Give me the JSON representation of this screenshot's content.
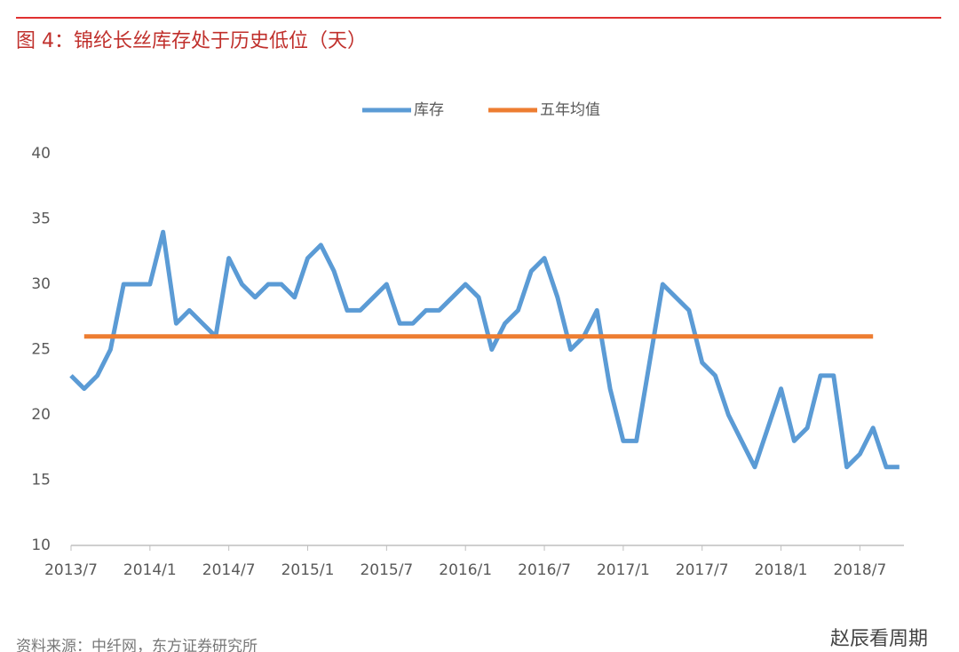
{
  "chart_data": {
    "type": "line",
    "title": "图 4：锦纶长丝库存处于历史低位（天）",
    "x": [
      "2013/7",
      "2013/8",
      "2013/9",
      "2013/10",
      "2013/11",
      "2013/12",
      "2014/1",
      "2014/2",
      "2014/3",
      "2014/4",
      "2014/5",
      "2014/6",
      "2014/7",
      "2014/8",
      "2014/9",
      "2014/10",
      "2014/11",
      "2014/12",
      "2015/1",
      "2015/2",
      "2015/3",
      "2015/4",
      "2015/5",
      "2015/6",
      "2015/7",
      "2015/8",
      "2015/9",
      "2015/10",
      "2015/11",
      "2015/12",
      "2016/1",
      "2016/2",
      "2016/3",
      "2016/4",
      "2016/5",
      "2016/6",
      "2016/7",
      "2016/8",
      "2016/9",
      "2016/10",
      "2016/11",
      "2016/12",
      "2017/1",
      "2017/2",
      "2017/3",
      "2017/4",
      "2017/5",
      "2017/6",
      "2017/7",
      "2017/8",
      "2017/9",
      "2017/10",
      "2017/11",
      "2017/12",
      "2018/1",
      "2018/2",
      "2018/3",
      "2018/4",
      "2018/5",
      "2018/6",
      "2018/7",
      "2018/8",
      "2018/9",
      "2018/10"
    ],
    "xticks": [
      "2013/7",
      "2014/1",
      "2014/7",
      "2015/1",
      "2015/7",
      "2016/1",
      "2016/7",
      "2017/1",
      "2017/7",
      "2018/1",
      "2018/7"
    ],
    "series": [
      {
        "name": "库存",
        "color": "#5b9bd5",
        "values": [
          23,
          22,
          23,
          25,
          30,
          30,
          30,
          34,
          27,
          28,
          27,
          26,
          32,
          30,
          29,
          30,
          30,
          29,
          32,
          33,
          31,
          28,
          28,
          29,
          30,
          27,
          27,
          28,
          28,
          29,
          30,
          29,
          25,
          27,
          28,
          31,
          32,
          29,
          25,
          26,
          28,
          22,
          18,
          18,
          24,
          30,
          29,
          28,
          24,
          23,
          20,
          18,
          16,
          19,
          22,
          18,
          19,
          23,
          23,
          16,
          17,
          19,
          16,
          16
        ]
      },
      {
        "name": "五年均值",
        "color": "#ed7d31",
        "values": [
          null,
          26,
          26,
          26,
          26,
          26,
          26,
          26,
          26,
          26,
          26,
          26,
          26,
          26,
          26,
          26,
          26,
          26,
          26,
          26,
          26,
          26,
          26,
          26,
          26,
          26,
          26,
          26,
          26,
          26,
          26,
          26,
          26,
          26,
          26,
          26,
          26,
          26,
          26,
          26,
          26,
          26,
          26,
          26,
          26,
          26,
          26,
          26,
          26,
          26,
          26,
          26,
          26,
          26,
          26,
          26,
          26,
          26,
          26,
          26,
          26,
          26,
          null,
          null
        ]
      }
    ],
    "ylim": [
      10,
      40
    ],
    "yticks": [
      10,
      15,
      20,
      25,
      30,
      35,
      40
    ],
    "grid": false,
    "legend": "top",
    "source": "资料来源：中纤网，东方证券研究所",
    "watermark": "赵辰看周期"
  }
}
